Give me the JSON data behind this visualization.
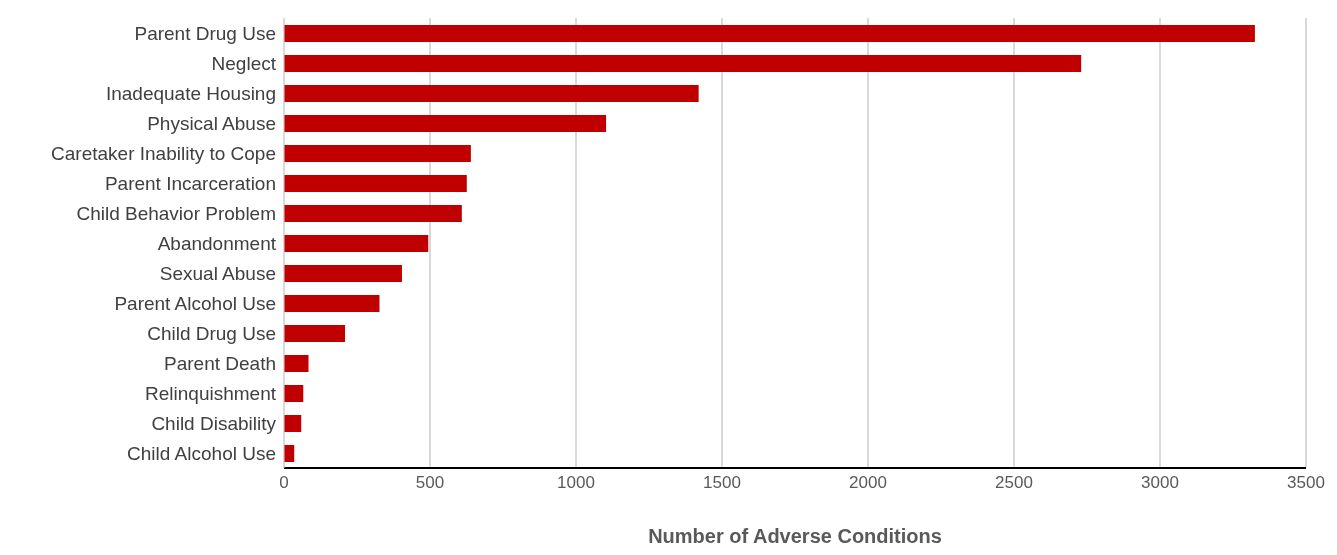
{
  "chart_data": {
    "type": "bar",
    "orientation": "horizontal",
    "xlabel": "Number of Adverse Conditions",
    "categories": [
      "Parent Drug Use",
      "Neglect",
      "Inadequate Housing",
      "Physical Abuse",
      "Caretaker Inability to Cope",
      "Parent Incarceration",
      "Child Behavior Problem",
      "Abandonment",
      "Sexual Abuse",
      "Parent Alcohol Use",
      "Child Drug Use",
      "Parent Death",
      "Relinquishment",
      "Child Disability",
      "Child Alcohol Use"
    ],
    "values": [
      3325,
      2730,
      1420,
      1103,
      640,
      626,
      609,
      494,
      404,
      327,
      209,
      84,
      66,
      59,
      35
    ],
    "color": "#c00000",
    "xlim": [
      0,
      3500
    ],
    "xticks": [
      0,
      500,
      1000,
      1500,
      2000,
      2500,
      3000,
      3500
    ],
    "grid": "x"
  }
}
